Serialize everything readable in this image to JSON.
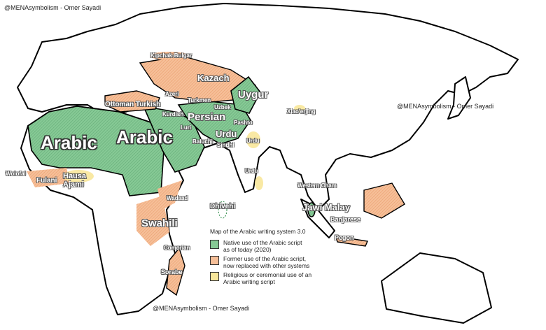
{
  "watermarks": [
    "@MENAsymbolism - Omer Sayadi",
    "@MENAsymbolism - Omer Sayadi",
    "@MENAsymbolism - Omer Sayadi"
  ],
  "legend": {
    "title": "Map of the Arabic writing system 3.0",
    "items": [
      {
        "label_line1": "Native use of the Arabic script",
        "label_line2": "as of today (2020)",
        "color": "#7cc48e"
      },
      {
        "label_line1": "Former use of the Arabic script,",
        "label_line2": "now replaced with other systems",
        "color": "#f4b48a"
      },
      {
        "label_line1": "Religious or ceremonial use of an",
        "label_line2": "Arabic writing script",
        "color": "#f8e79a"
      }
    ]
  },
  "labels": {
    "arabic_africa": "Arabic",
    "arabic_asia": "Arabic",
    "persian": "Persian",
    "urdu": "Urdu",
    "urdu_india": "Urdu",
    "urdu_south": "Urdu",
    "uygur": "Uygur",
    "kazach": "Kazach",
    "kipchak": "Kipchak-Bulgar",
    "ottoman": "Ottoman Turkish",
    "azeri": "Azeri",
    "kurdish": "Kurdish",
    "baluchi": "Baluchi",
    "sindhi": "Sindhi",
    "pashto": "Pashto",
    "uzbek": "Uzbek",
    "turkmen": "Turkmen",
    "luri": "Luri",
    "xiaoerjing": "Xiao'erjing",
    "wolofal": "Wolofal",
    "fulani": "Fulani",
    "hausa": "Hausa Ajami",
    "swahili": "Swahili",
    "wadaad": "Wadaad",
    "comorian": "Comorian",
    "sorabe": "Sorabe",
    "dhivehi": "Dhivehi",
    "jawi": "Jawi Malay",
    "banjarese": "Banjarese",
    "pegon": "Pegon",
    "cham": "Western Cham"
  },
  "colors": {
    "native": "#7cc48e",
    "former": "#f4b48a",
    "ceremonial": "#f8e79a",
    "border": "#000000"
  }
}
